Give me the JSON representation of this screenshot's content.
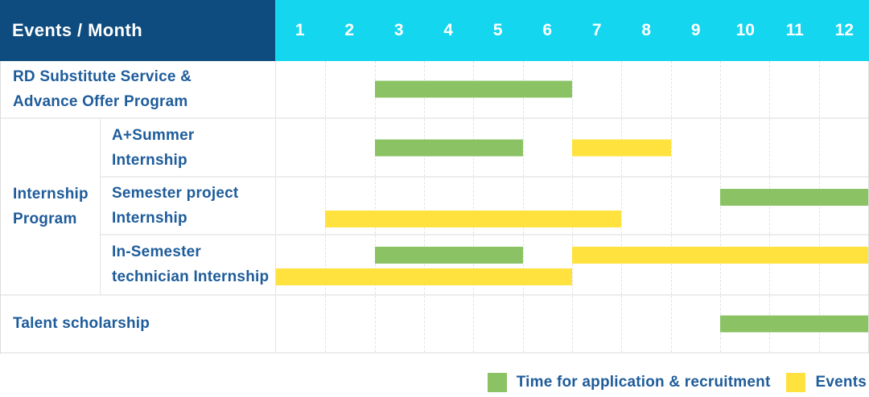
{
  "chart_data": {
    "type": "bar",
    "subtype": "gantt-table",
    "title": "Events / Month",
    "x_axis": {
      "label": "Month",
      "ticks": [
        "1",
        "2",
        "3",
        "4",
        "5",
        "6",
        "7",
        "8",
        "9",
        "10",
        "11",
        "12"
      ],
      "range": [
        1,
        12
      ]
    },
    "grid": true,
    "legend_position": "bottom-right",
    "series": [
      {
        "key": "recruitment",
        "name": "Time for application & recruitment",
        "color": "#8bc364"
      },
      {
        "key": "events",
        "name": "Events",
        "color": "#ffe23e"
      }
    ],
    "groups": [
      {
        "name": "Internship Program",
        "label_lines": [
          "Internship",
          "Program"
        ]
      }
    ],
    "rows": [
      {
        "id": "rd-substitute",
        "group": null,
        "label_lines": [
          "RD Substitute Service &",
          "Advance Offer Program"
        ],
        "spans": [
          {
            "series": "recruitment",
            "start_month": 3,
            "end_month": 6,
            "line": 0
          }
        ]
      },
      {
        "id": "a-plus-summer-internship",
        "group": "Internship Program",
        "label_lines": [
          "A+Summer",
          "Internship"
        ],
        "spans": [
          {
            "series": "recruitment",
            "start_month": 3,
            "end_month": 5,
            "line": 0
          },
          {
            "series": "events",
            "start_month": 7,
            "end_month": 8,
            "line": 0
          }
        ]
      },
      {
        "id": "semester-project-internship",
        "group": "Internship Program",
        "label_lines": [
          "Semester project",
          "Internship"
        ],
        "spans": [
          {
            "series": "recruitment",
            "start_month": 10,
            "end_month": 12,
            "line": 0
          },
          {
            "series": "events",
            "start_month": 2,
            "end_month": 7,
            "line": 1
          }
        ]
      },
      {
        "id": "in-semester-technician-internship",
        "group": "Internship Program",
        "label_lines": [
          "In-Semester",
          "technician Internship"
        ],
        "spans": [
          {
            "series": "recruitment",
            "start_month": 3,
            "end_month": 5,
            "line": 0
          },
          {
            "series": "events",
            "start_month": 7,
            "end_month": 12,
            "line": 0
          },
          {
            "series": "events",
            "start_month": 1,
            "end_month": 6,
            "line": 1
          }
        ]
      },
      {
        "id": "talent-scholarship",
        "group": null,
        "label_lines": [
          "Talent scholarship"
        ],
        "spans": [
          {
            "series": "recruitment",
            "start_month": 10,
            "end_month": 12,
            "line": 0
          }
        ]
      }
    ]
  },
  "legend": {
    "items": [
      {
        "label": "Time for application & recruitment",
        "series": "recruitment"
      },
      {
        "label": "Events",
        "series": "events"
      }
    ]
  },
  "colors": {
    "header_bg": "#0e4b7e",
    "months_bg": "#14d6ef",
    "header_text": "#ffffff",
    "label_text": "#1e5c9b",
    "recruitment_green": "#8bc364",
    "events_yellow": "#ffe23e",
    "grid_line": "#e2e2e2",
    "row_border": "#ededed",
    "table_border": "#dcdcdc",
    "background": "#ffffff"
  }
}
